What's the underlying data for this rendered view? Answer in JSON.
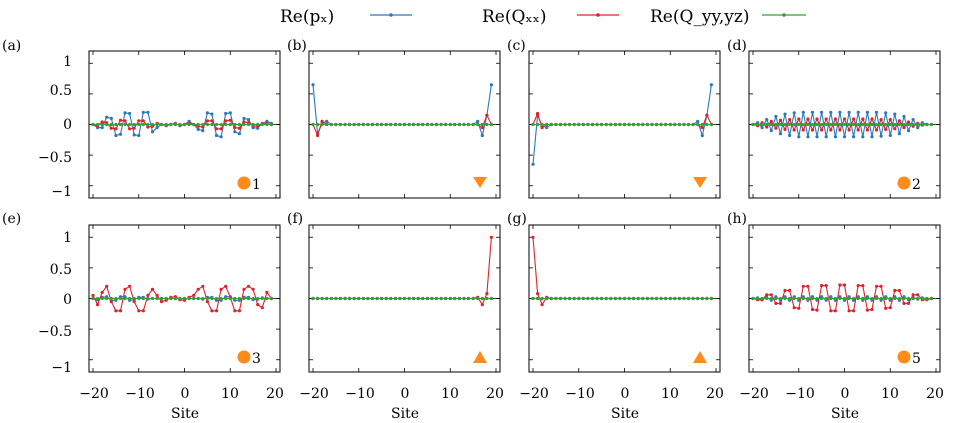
{
  "legend": {
    "items": [
      {
        "label": "Re(pₓ)",
        "color": "#2b78bd"
      },
      {
        "label": "Re(Qₓₓ)",
        "color": "#e0222a"
      },
      {
        "label": "Re(Q_yy,yz)",
        "color": "#35a135"
      }
    ]
  },
  "colors": {
    "px": "#2b78bd",
    "qxx": "#e0222a",
    "qyy": "#35a135",
    "marker": "#ff8c1a"
  },
  "chart_data": [
    {
      "type": "line",
      "panel": "(a)",
      "xlim": [
        -20,
        20
      ],
      "ylim": [
        -1.2,
        1.2
      ],
      "yticks": [
        "1",
        "0.5",
        "0",
        "−0.5",
        "−1"
      ],
      "xticks": [
        "−20",
        "−10",
        "0",
        "10",
        "20"
      ],
      "xlabel": "",
      "marker": {
        "shape": "circle",
        "label": "1"
      },
      "series": [
        {
          "name": "Re(pₓ)",
          "x": [
            -20,
            -19,
            -18,
            -17,
            -16,
            -15,
            -14,
            -13,
            -12,
            -11,
            -10,
            -9,
            -8,
            -7,
            -6,
            -5,
            -4,
            -3,
            -2,
            -1,
            0,
            1,
            2,
            3,
            4,
            5,
            6,
            7,
            8,
            9,
            10,
            11,
            12,
            13,
            14,
            15,
            16,
            17,
            18,
            19
          ],
          "y": [
            0,
            -0.05,
            -0.05,
            0.12,
            0.1,
            -0.18,
            -0.16,
            0.19,
            0.18,
            -0.17,
            -0.18,
            0.2,
            0.2,
            -0.12,
            -0.05,
            0,
            -0.02,
            0,
            0.02,
            -0.02,
            0,
            0.05,
            0,
            -0.08,
            -0.1,
            0.19,
            0.17,
            -0.18,
            -0.2,
            0.18,
            0.19,
            -0.12,
            -0.15,
            0.1,
            0.08,
            -0.05,
            -0.06,
            0.02,
            0.05,
            0.02
          ]
        },
        {
          "name": "Re(Qₓₓ)",
          "x": [
            -20,
            -19,
            -18,
            -17,
            -16,
            -15,
            -14,
            -13,
            -12,
            -11,
            -10,
            -9,
            -8,
            -7,
            -6,
            -5,
            -4,
            -3,
            -2,
            -1,
            0,
            1,
            2,
            3,
            4,
            5,
            6,
            7,
            8,
            9,
            10,
            11,
            12,
            13,
            14,
            15,
            16,
            17,
            18,
            19
          ],
          "y": [
            0,
            -0.02,
            0.04,
            0.03,
            -0.06,
            -0.07,
            0.07,
            0.06,
            -0.07,
            -0.06,
            0.06,
            0.06,
            -0.04,
            -0.03,
            0.02,
            0,
            -0.01,
            0,
            0.01,
            -0.01,
            0,
            0.02,
            0,
            -0.03,
            -0.04,
            0.06,
            0.06,
            -0.07,
            -0.07,
            0.06,
            0.07,
            -0.05,
            -0.06,
            0.04,
            0.03,
            -0.02,
            -0.03,
            0.01,
            0.02,
            0
          ]
        },
        {
          "name": "Re(Q_yy,yz)",
          "x": [
            -20,
            19
          ],
          "y": [
            0,
            0
          ]
        }
      ]
    },
    {
      "type": "line",
      "panel": "(b)",
      "xlim": [
        -20,
        20
      ],
      "ylim": [
        -1.2,
        1.2
      ],
      "xticks": [],
      "xlabel": "",
      "marker": {
        "shape": "triangle-down",
        "label": ""
      },
      "series": [
        {
          "name": "Re(pₓ)",
          "x": [
            -20,
            -19,
            -18,
            -17,
            -16,
            -15,
            15,
            16,
            17,
            18,
            19
          ],
          "y": [
            0.65,
            -0.15,
            0.02,
            0.05,
            0,
            0,
            0,
            0.05,
            -0.18,
            0.15,
            0.65
          ]
        },
        {
          "name": "Re(Qₓₓ)",
          "x": [
            -20,
            -19,
            -18,
            -17,
            -16,
            16,
            17,
            18,
            19
          ],
          "y": [
            0,
            -0.18,
            0.05,
            0,
            0,
            0,
            -0.05,
            0.15,
            0
          ]
        },
        {
          "name": "Re(Q_yy,yz)",
          "x": [
            -20,
            19
          ],
          "y": [
            0,
            0
          ]
        }
      ]
    },
    {
      "type": "line",
      "panel": "(c)",
      "xlim": [
        -20,
        20
      ],
      "ylim": [
        -1.2,
        1.2
      ],
      "xticks": [],
      "xlabel": "",
      "marker": {
        "shape": "triangle-down",
        "label": ""
      },
      "series": [
        {
          "name": "Re(pₓ)",
          "x": [
            -20,
            -19,
            -18,
            -17,
            -16,
            -15,
            15,
            16,
            17,
            18,
            19
          ],
          "y": [
            -0.65,
            0.15,
            -0.02,
            -0.05,
            0,
            0,
            0,
            0.05,
            -0.18,
            0.15,
            0.65
          ]
        },
        {
          "name": "Re(Qₓₓ)",
          "x": [
            -20,
            -19,
            -18,
            -17,
            -16,
            16,
            17,
            18,
            19
          ],
          "y": [
            0,
            0.18,
            -0.05,
            0,
            0,
            0,
            -0.05,
            0.15,
            0
          ]
        },
        {
          "name": "Re(Q_yy,yz)",
          "x": [
            -20,
            19
          ],
          "y": [
            0,
            0
          ]
        }
      ]
    },
    {
      "type": "line",
      "panel": "(d)",
      "xlim": [
        -20,
        20
      ],
      "ylim": [
        -1.2,
        1.2
      ],
      "xticks": [],
      "xlabel": "",
      "marker": {
        "shape": "circle",
        "label": "2"
      },
      "series": [
        {
          "name": "Re(pₓ)",
          "x": [
            -20,
            -19,
            -18,
            -17,
            -16,
            -15,
            -14,
            -13,
            -12,
            -11,
            -10,
            -9,
            -8,
            -7,
            -6,
            -5,
            -4,
            -3,
            -2,
            -1,
            0,
            1,
            2,
            3,
            4,
            5,
            6,
            7,
            8,
            9,
            10,
            11,
            12,
            13,
            14,
            15,
            16,
            17,
            18,
            19
          ],
          "y": [
            0,
            0.03,
            -0.05,
            0.08,
            -0.1,
            0.13,
            -0.15,
            0.17,
            -0.18,
            0.19,
            -0.2,
            0.2,
            -0.2,
            0.2,
            -0.2,
            0.2,
            -0.2,
            0.2,
            -0.2,
            0.2,
            -0.2,
            0.2,
            -0.2,
            0.2,
            -0.2,
            0.2,
            -0.2,
            0.2,
            -0.19,
            0.19,
            -0.18,
            0.17,
            -0.15,
            0.13,
            -0.1,
            0.08,
            -0.05,
            0.03,
            0,
            0
          ]
        },
        {
          "name": "Re(Qₓₓ)",
          "x": [
            -20,
            -19,
            -18,
            -17,
            -16,
            -15,
            -14,
            -13,
            -12,
            -11,
            -10,
            -9,
            -8,
            -7,
            -6,
            -5,
            -4,
            -3,
            -2,
            -1,
            0,
            1,
            2,
            3,
            4,
            5,
            6,
            7,
            8,
            9,
            10,
            11,
            12,
            13,
            14,
            15,
            16,
            17,
            18,
            19
          ],
          "y": [
            0,
            -0.02,
            0.03,
            -0.04,
            0.05,
            -0.06,
            0.07,
            -0.08,
            0.08,
            -0.09,
            0.09,
            -0.09,
            0.09,
            -0.09,
            0.09,
            -0.09,
            0.09,
            -0.09,
            0.09,
            -0.09,
            0.09,
            -0.09,
            0.09,
            -0.09,
            0.09,
            -0.09,
            0.09,
            -0.09,
            0.08,
            -0.08,
            0.08,
            -0.07,
            0.06,
            -0.05,
            0.04,
            -0.03,
            0.02,
            -0.01,
            0,
            0
          ]
        },
        {
          "name": "Re(Q_yy,yz)",
          "x": [
            -20,
            19
          ],
          "y": [
            0,
            0
          ]
        }
      ]
    },
    {
      "type": "line",
      "panel": "(e)",
      "xlim": [
        -20,
        20
      ],
      "ylim": [
        -1.2,
        1.2
      ],
      "yticks": [
        "1",
        "0.5",
        "0",
        "−0.5",
        "−1"
      ],
      "xticks": [
        "−20",
        "−10",
        "0",
        "10",
        "20"
      ],
      "xlabel": "Site",
      "marker": {
        "shape": "circle",
        "label": "3"
      },
      "series": [
        {
          "name": "Re(pₓ)",
          "x": [
            -20,
            -19,
            -18,
            -17,
            -16,
            -15,
            -14,
            -13,
            -12,
            -11,
            -10,
            -9,
            -8,
            -7,
            -6,
            -5,
            -4,
            -3,
            -2,
            -1,
            0,
            1,
            2,
            3,
            4,
            5,
            6,
            7,
            8,
            9,
            10,
            11,
            12,
            13,
            14,
            15,
            16,
            17,
            18,
            19
          ],
          "y": [
            0,
            -0.02,
            0.02,
            0.03,
            -0.03,
            -0.03,
            0.03,
            0.03,
            -0.03,
            -0.02,
            0.02,
            0.02,
            -0.01,
            0,
            0,
            0,
            0,
            0,
            0,
            0,
            0,
            0,
            0,
            0,
            -0.01,
            0.02,
            0.02,
            -0.03,
            -0.03,
            0.03,
            0.03,
            -0.03,
            -0.03,
            0.02,
            0.02,
            -0.02,
            -0.01,
            0.01,
            0,
            0
          ]
        },
        {
          "name": "Re(Qₓₓ)",
          "x": [
            -20,
            -19,
            -18,
            -17,
            -16,
            -15,
            -14,
            -13,
            -12,
            -11,
            -10,
            -9,
            -8,
            -7,
            -6,
            -5,
            -4,
            -3,
            -2,
            -1,
            0,
            1,
            2,
            3,
            4,
            5,
            6,
            7,
            8,
            9,
            10,
            11,
            12,
            13,
            14,
            15,
            16,
            17,
            18,
            19
          ],
          "y": [
            0.05,
            -0.1,
            0.1,
            0.2,
            -0.05,
            -0.2,
            -0.2,
            0.15,
            0.2,
            -0.05,
            -0.2,
            -0.2,
            0.05,
            0.15,
            0.05,
            -0.05,
            -0.03,
            0.02,
            0.03,
            -0.02,
            -0.03,
            0.02,
            0.05,
            0.15,
            0.2,
            -0.05,
            -0.2,
            -0.2,
            0.15,
            0.2,
            0.02,
            -0.2,
            -0.2,
            0.15,
            0.2,
            0.15,
            -0.1,
            -0.15,
            0.1,
            0
          ]
        },
        {
          "name": "Re(Q_yy,yz)",
          "x": [
            -20,
            19
          ],
          "y": [
            0,
            0
          ]
        }
      ]
    },
    {
      "type": "line",
      "panel": "(f)",
      "xlim": [
        -20,
        20
      ],
      "ylim": [
        -1.2,
        1.2
      ],
      "xticks": [
        "−20",
        "−10",
        "0",
        "10",
        "20"
      ],
      "xlabel": "Site",
      "marker": {
        "shape": "triangle-up",
        "label": ""
      },
      "series": [
        {
          "name": "Re(pₓ)",
          "x": [
            -20,
            19
          ],
          "y": [
            0,
            0
          ]
        },
        {
          "name": "Re(Qₓₓ)",
          "x": [
            -20,
            -19,
            15,
            16,
            17,
            18,
            19
          ],
          "y": [
            0,
            0,
            0,
            0.02,
            -0.1,
            0.08,
            1.0
          ]
        },
        {
          "name": "Re(Q_yy,yz)",
          "x": [
            -20,
            19
          ],
          "y": [
            0,
            0
          ]
        }
      ]
    },
    {
      "type": "line",
      "panel": "(g)",
      "xlim": [
        -20,
        20
      ],
      "ylim": [
        -1.2,
        1.2
      ],
      "xticks": [
        "−20",
        "−10",
        "0",
        "10",
        "20"
      ],
      "xlabel": "Site",
      "marker": {
        "shape": "triangle-up",
        "label": ""
      },
      "series": [
        {
          "name": "Re(pₓ)",
          "x": [
            -20,
            19
          ],
          "y": [
            0,
            0
          ]
        },
        {
          "name": "Re(Qₓₓ)",
          "x": [
            -20,
            -19,
            -18,
            -17,
            -16,
            -15,
            19
          ],
          "y": [
            1.0,
            0.08,
            -0.1,
            0.02,
            0,
            0,
            0
          ]
        },
        {
          "name": "Re(Q_yy,yz)",
          "x": [
            -20,
            19
          ],
          "y": [
            0,
            0
          ]
        }
      ]
    },
    {
      "type": "line",
      "panel": "(h)",
      "xlim": [
        -20,
        20
      ],
      "ylim": [
        -1.2,
        1.2
      ],
      "xticks": [
        "−20",
        "−10",
        "0",
        "10",
        "20"
      ],
      "xlabel": "Site",
      "marker": {
        "shape": "circle",
        "label": "5"
      },
      "series": [
        {
          "name": "Re(pₓ)",
          "x": [
            -20,
            -19,
            -18,
            -17,
            -16,
            -15,
            -14,
            -13,
            -12,
            -11,
            -10,
            -9,
            -8,
            -7,
            -6,
            -5,
            -4,
            -3,
            -2,
            -1,
            0,
            1,
            2,
            3,
            4,
            5,
            6,
            7,
            8,
            9,
            10,
            11,
            12,
            13,
            14,
            15,
            16,
            17,
            18,
            19
          ],
          "y": [
            0,
            0.01,
            -0.02,
            0.02,
            -0.03,
            0.03,
            -0.03,
            0.03,
            -0.03,
            0.03,
            -0.03,
            0.03,
            -0.03,
            0.03,
            -0.03,
            0.03,
            -0.03,
            0.03,
            -0.03,
            0.03,
            -0.03,
            0.03,
            -0.03,
            0.03,
            -0.03,
            0.03,
            -0.03,
            0.03,
            -0.03,
            0.03,
            -0.03,
            0.03,
            -0.03,
            0.03,
            -0.02,
            0.02,
            -0.01,
            0.01,
            0,
            0
          ]
        },
        {
          "name": "Re(Qₓₓ)",
          "x": [
            -20,
            -19,
            -18,
            -17,
            -16,
            -15,
            -14,
            -13,
            -12,
            -11,
            -10,
            -9,
            -8,
            -7,
            -6,
            -5,
            -4,
            -3,
            -2,
            -1,
            0,
            1,
            2,
            3,
            4,
            5,
            6,
            7,
            8,
            9,
            10,
            11,
            12,
            13,
            14,
            15,
            16,
            17,
            18,
            19
          ],
          "y": [
            0,
            -0.02,
            -0.02,
            0.06,
            0.06,
            -0.08,
            -0.08,
            0.13,
            0.13,
            -0.15,
            -0.16,
            0.2,
            0.2,
            -0.18,
            -0.19,
            0.21,
            0.21,
            -0.2,
            -0.2,
            0.22,
            0.22,
            -0.2,
            -0.2,
            0.21,
            0.21,
            -0.19,
            -0.18,
            0.2,
            0.2,
            -0.16,
            -0.15,
            0.13,
            0.13,
            -0.08,
            -0.08,
            0.06,
            0.06,
            -0.02,
            -0.02,
            0
          ]
        },
        {
          "name": "Re(Q_yy,yz)",
          "x": [
            -20,
            19
          ],
          "y": [
            0,
            0
          ]
        }
      ]
    }
  ]
}
